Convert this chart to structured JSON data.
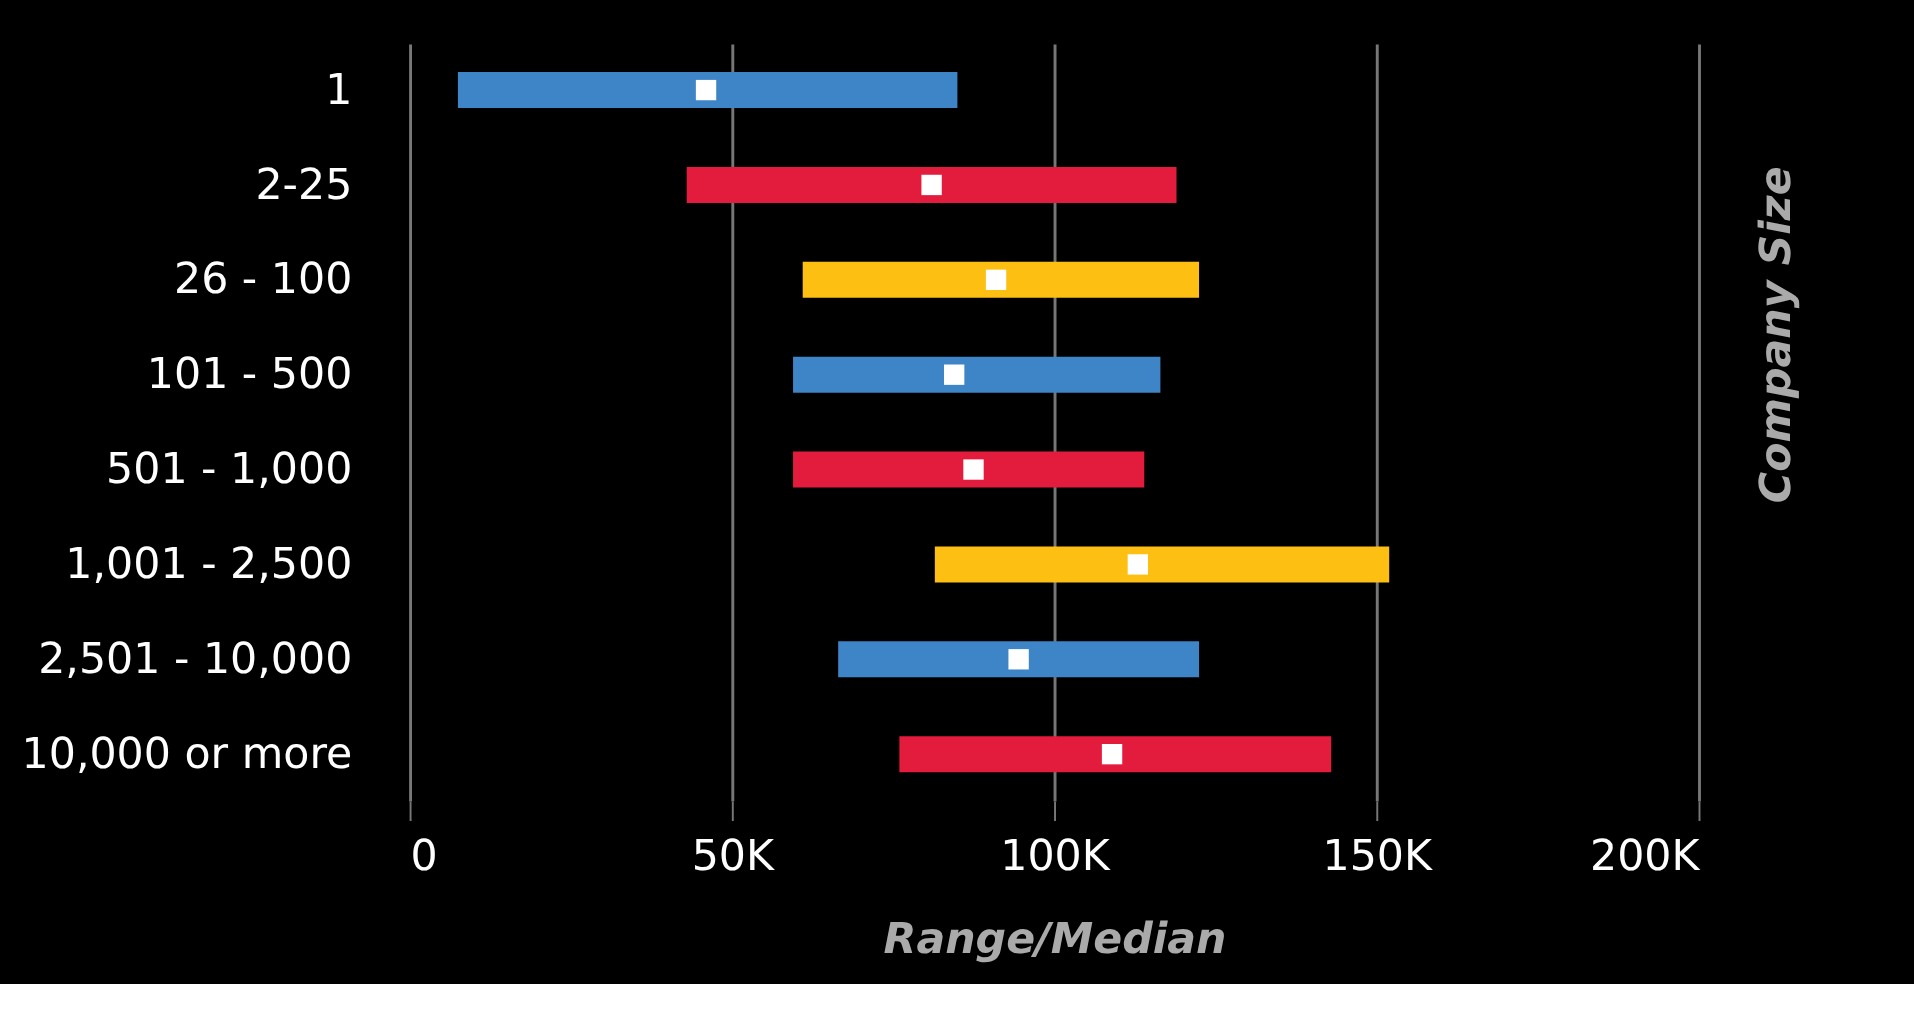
{
  "chart_data": {
    "type": "bar",
    "orientation": "horizontal",
    "xlabel": "Range/Median",
    "ylabel": "Company Size",
    "categories": [
      "1",
      "2-25",
      "26 - 100",
      "101 - 500",
      "501 - 1,000",
      "1,001 - 2,500",
      "2,501 - 10,000",
      "10,000 or more"
    ],
    "series": [
      {
        "base": [
          7500,
          43000,
          61000,
          59500,
          59500,
          81500,
          66500,
          76000
        ],
        "values": [
          77500,
          76000,
          61500,
          57000,
          54500,
          70500,
          56000,
          67000
        ],
        "colors": [
          "#3d85c6",
          "#e31c3d",
          "#fdbf11",
          "#3d85c6",
          "#e31c3d",
          "#fdbf11",
          "#3d85c6",
          "#e31c3d"
        ]
      },
      {
        "type": "scatter",
        "color": "#ffffff",
        "x": [
          "1",
          "2-25",
          "26 - 100",
          "101 - 500",
          "501 - 1,000",
          "1,001 - 2,500",
          "2,501 - 10,000",
          "10,000 or more"
        ],
        "values": [
          46000,
          81000,
          91000,
          84500,
          87500,
          113000,
          94500,
          109000
        ]
      }
    ],
    "xlim": [
      0,
      200000
    ],
    "xticks": [
      {
        "value": 0,
        "label": "0"
      },
      {
        "value": 50000,
        "label": "50K"
      },
      {
        "value": 100000,
        "label": "100K"
      },
      {
        "value": 150000,
        "label": "150K"
      },
      {
        "value": 200000,
        "label": "200K"
      }
    ],
    "grid": "x",
    "legend": false,
    "marker": "square"
  }
}
